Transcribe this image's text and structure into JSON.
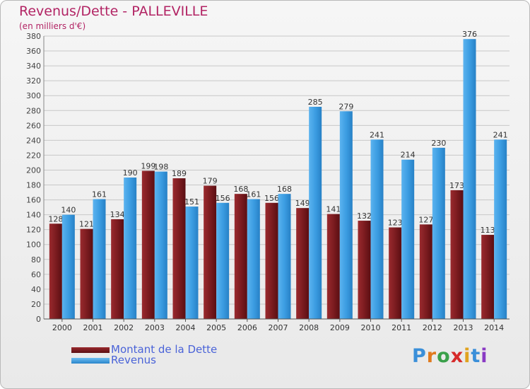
{
  "title": "Revenus/Dette - PALLEVILLE",
  "subtitle": "(en milliers d'€)",
  "colors": {
    "dette": "#7a1a1c",
    "revenus": "#3a9be0",
    "title": "#b22464",
    "legend_text": "#4a63d8"
  },
  "legend": [
    {
      "label": "Montant de la Dette",
      "color": "#7a1a1c"
    },
    {
      "label": "Revenus",
      "color": "#3a9be0"
    }
  ],
  "logo": {
    "text": "Proxiti"
  },
  "chart_data": {
    "type": "bar",
    "title": "Revenus/Dette - PALLEVILLE",
    "subtitle": "(en milliers d'€)",
    "xlabel": "",
    "ylabel": "",
    "ylim": [
      0,
      380
    ],
    "ytick_step": 20,
    "grid": true,
    "legend_position": "bottom-left",
    "categories": [
      "2000",
      "2001",
      "2002",
      "2003",
      "2004",
      "2005",
      "2006",
      "2007",
      "2008",
      "2009",
      "2010",
      "2011",
      "2012",
      "2013",
      "2014"
    ],
    "series": [
      {
        "name": "Montant de la Dette",
        "values": [
          128,
          121,
          134,
          199,
          189,
          179,
          168,
          156,
          149,
          141,
          132,
          123,
          127,
          173,
          113
        ]
      },
      {
        "name": "Revenus",
        "values": [
          140,
          161,
          190,
          198,
          151,
          156,
          161,
          168,
          285,
          279,
          241,
          214,
          230,
          376,
          241
        ]
      }
    ]
  }
}
